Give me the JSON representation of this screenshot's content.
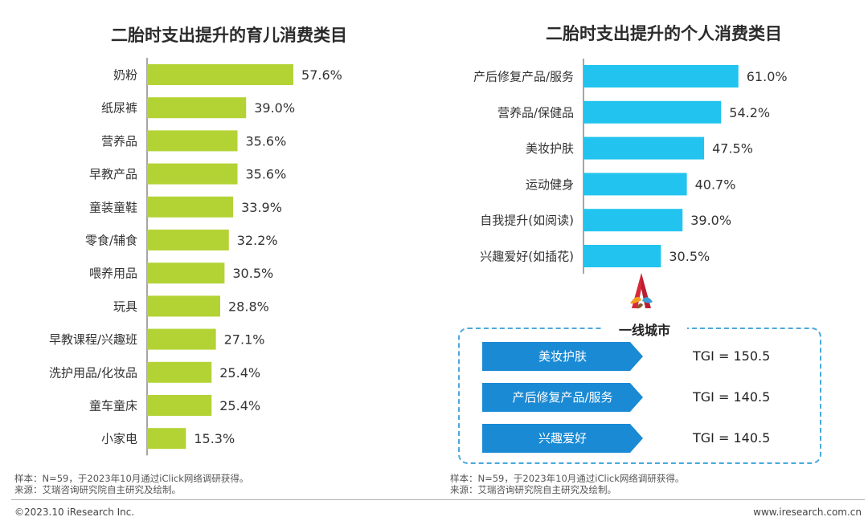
{
  "chart_data": [
    {
      "type": "bar",
      "orientation": "horizontal",
      "title": "二胎时支出提升的育儿消费类目",
      "categories": [
        "奶粉",
        "纸尿裤",
        "营养品",
        "早教产品",
        "童装童鞋",
        "零食/辅食",
        "喂养用品",
        "玩具",
        "早教课程/兴趣班",
        "洗护用品/化妆品",
        "童车童床",
        "小家电"
      ],
      "values": [
        57.6,
        39.0,
        35.6,
        35.6,
        33.9,
        32.2,
        30.5,
        28.8,
        27.1,
        25.4,
        25.4,
        15.3
      ],
      "value_labels": [
        "57.6%",
        "39.0%",
        "35.6%",
        "35.6%",
        "33.9%",
        "32.2%",
        "30.5%",
        "28.8%",
        "27.1%",
        "25.4%",
        "25.4%",
        "15.3%"
      ],
      "unit": "%",
      "color": "#b3d335",
      "axis_line_color": "#6b6b6b",
      "grid": false,
      "legend": "none"
    },
    {
      "type": "bar",
      "orientation": "horizontal",
      "title": "二胎时支出提升的个人消费类目",
      "categories": [
        "产后修复产品/服务",
        "营养品/保健品",
        "美妆护肤",
        "运动健身",
        "自我提升(如阅读)",
        "兴趣爱好(如插花)"
      ],
      "values": [
        61.0,
        54.2,
        47.5,
        40.7,
        39.0,
        30.5
      ],
      "value_labels": [
        "61.0%",
        "54.2%",
        "47.5%",
        "40.7%",
        "39.0%",
        "30.5%"
      ],
      "unit": "%",
      "color": "#22c4ef",
      "axis_line_color": "#6b6b6b",
      "grid": false,
      "legend": "none"
    }
  ],
  "tgi": {
    "title": "一线城市",
    "arrow_color": "#1a8ad4",
    "border_color": "#4aa8dd",
    "items": [
      {
        "label": "美妆护肤",
        "value_text": "TGI = 150.5",
        "value": 150.5
      },
      {
        "label": "产后修复产品/服务",
        "value_text": "TGI = 140.5",
        "value": 140.5
      },
      {
        "label": "兴趣爱好",
        "value_text": "TGI = 140.5",
        "value": 140.5
      }
    ]
  },
  "logo": {
    "icon": "iresearch-a-logo-icon",
    "colors": [
      "#d7283a",
      "#f39c1f",
      "#3a9fd8"
    ]
  },
  "notes": {
    "left_sample": "样本：N=59，于2023年10月通过iClick网络调研获得。",
    "left_source": "来源：艾瑞咨询研究院自主研究及绘制。",
    "right_sample": "样本：N=59，于2023年10月通过iClick网络调研获得。",
    "right_source": "来源：艾瑞咨询研究院自主研究及绘制。"
  },
  "footer": {
    "copyright": "©2023.10 iResearch Inc.",
    "website": "www.iresearch.com.cn"
  }
}
